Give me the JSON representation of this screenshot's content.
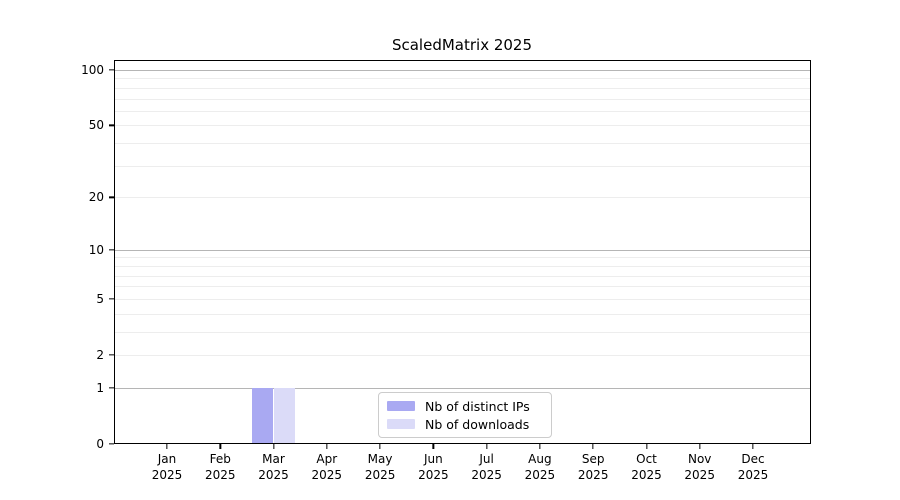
{
  "chart_data": {
    "type": "bar",
    "title": "ScaledMatrix 2025",
    "categories": [
      "Jan 2025",
      "Feb 2025",
      "Mar 2025",
      "Apr 2025",
      "May 2025",
      "Jun 2025",
      "Jul 2025",
      "Aug 2025",
      "Sep 2025",
      "Oct 2025",
      "Nov 2025",
      "Dec 2025"
    ],
    "series": [
      {
        "name": "Nb of distinct IPs",
        "color": "#a9a9f2",
        "values": [
          0,
          0,
          1,
          0,
          0,
          0,
          0,
          0,
          0,
          0,
          0,
          0
        ]
      },
      {
        "name": "Nb of downloads",
        "color": "#dbdbf8",
        "values": [
          0,
          0,
          1,
          0,
          0,
          0,
          0,
          0,
          0,
          0,
          0,
          0
        ]
      }
    ],
    "y_axis": {
      "scale": "log10(1+v)",
      "tick_values": [
        0,
        1,
        2,
        5,
        10,
        20,
        50,
        100
      ],
      "max_value": 113
    },
    "grid": {
      "major_values": [
        1,
        10,
        100
      ],
      "minor_values": [
        2,
        3,
        4,
        5,
        6,
        7,
        8,
        9,
        20,
        30,
        40,
        50,
        60,
        70,
        80,
        90
      ],
      "major_color": "#b5b5b5",
      "minor_color": "#ededed"
    },
    "legend": {
      "position": "lower center"
    },
    "style": {
      "axis_color": "#000000",
      "text_color": "#000000",
      "background": "#ffffff"
    }
  }
}
